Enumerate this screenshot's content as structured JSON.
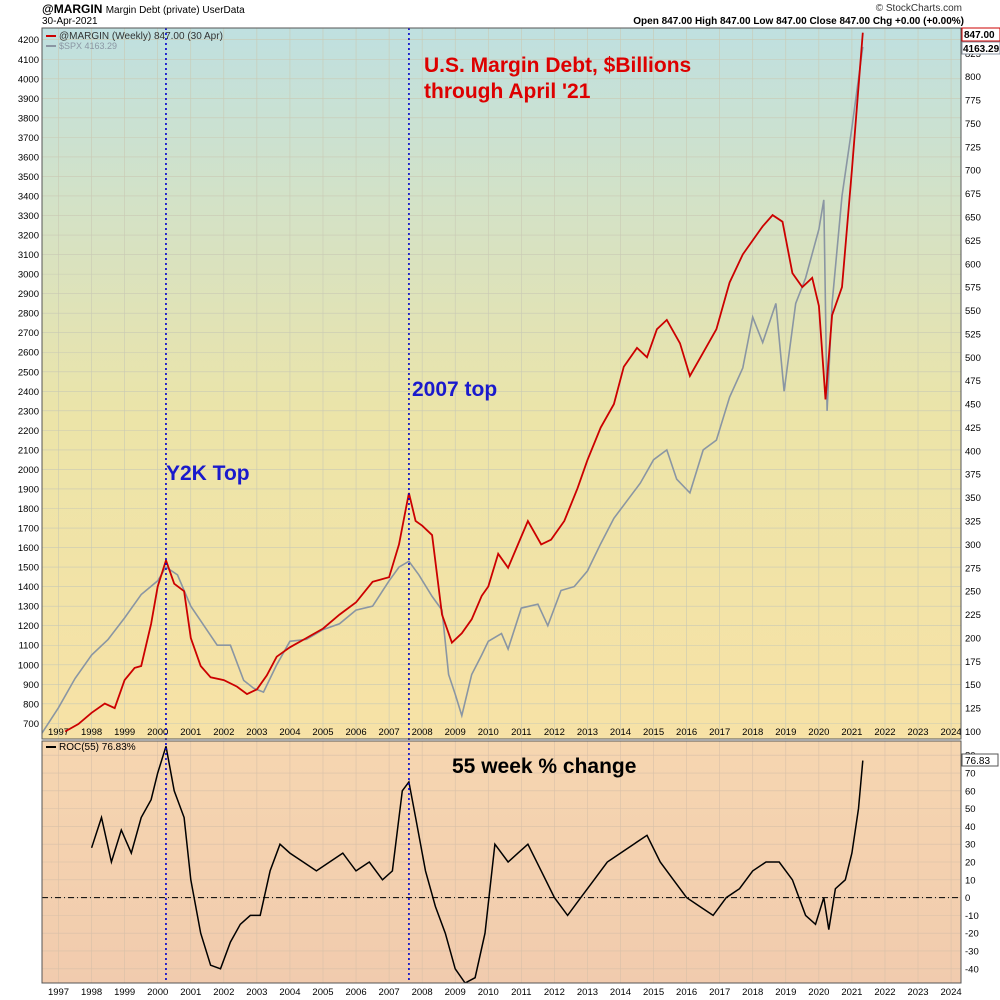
{
  "header": {
    "symbol": "@MARGIN",
    "description": "Margin Debt (private) UserData",
    "date": "30-Apr-2021",
    "watermark": "© StockCharts.com",
    "ohlc": "Open 847.00  High 847.00  Low 847.00  Close 847.00  Chg +0.00 (+0.00%)"
  },
  "legend": {
    "margin": "@MARGIN (Weekly) 847.00 (30 Apr)",
    "spx": "$SPX 4163.29",
    "roc": "ROC(55) 76.83%"
  },
  "badges": {
    "margin_last": "847.00",
    "spx_last": "4163.29",
    "roc_last": "76.83"
  },
  "annotations": {
    "title_line1": "U.S. Margin Debt, $Billions",
    "title_line2": "through April '21",
    "y2k": "Y2K Top",
    "top2007": "2007 top",
    "roc_title": "55 week % change"
  },
  "colors": {
    "margin": "#cc0000",
    "spx": "#8a96a3",
    "roc": "#000000",
    "annotation_red": "#dd0000",
    "annotation_blue": "#1a1acc",
    "marker_line": "#0000cc"
  },
  "chart_data": [
    {
      "type": "line",
      "title": "U.S. Margin Debt, $Billions through April '21",
      "x_range": [
        1996.5,
        2024.3
      ],
      "x_ticks": [
        1997,
        1998,
        1999,
        2000,
        2001,
        2002,
        2003,
        2004,
        2005,
        2006,
        2007,
        2008,
        2009,
        2010,
        2011,
        2012,
        2013,
        2014,
        2015,
        2016,
        2017,
        2018,
        2019,
        2020,
        2021,
        2022,
        2023,
        2024
      ],
      "left_axis": {
        "label": "$SPX",
        "range": [
          620,
          4260
        ],
        "ticks": [
          700,
          800,
          900,
          1000,
          1100,
          1200,
          1300,
          1400,
          1500,
          1600,
          1700,
          1800,
          1900,
          2000,
          2100,
          2200,
          2300,
          2400,
          2500,
          2600,
          2700,
          2800,
          2900,
          3000,
          3100,
          3200,
          3300,
          3400,
          3500,
          3600,
          3700,
          3800,
          3900,
          4000,
          4100,
          4200
        ]
      },
      "right_axis": {
        "label": "@MARGIN",
        "range": [
          92,
          852
        ],
        "ticks": [
          100,
          125,
          150,
          175,
          200,
          225,
          250,
          275,
          300,
          325,
          350,
          375,
          400,
          425,
          450,
          475,
          500,
          525,
          550,
          575,
          600,
          625,
          650,
          675,
          700,
          725,
          750,
          775,
          800,
          825
        ]
      },
      "markers": [
        2000.25,
        2007.6
      ],
      "series": [
        {
          "name": "@MARGIN",
          "axis": "right",
          "x": [
            1997.2,
            1997.6,
            1998.0,
            1998.4,
            1998.7,
            1999.0,
            1999.3,
            1999.5,
            1999.8,
            2000.0,
            2000.25,
            2000.5,
            2000.8,
            2001.0,
            2001.3,
            2001.6,
            2002.0,
            2002.4,
            2002.7,
            2003.0,
            2003.3,
            2003.6,
            2004.0,
            2004.5,
            2005.0,
            2005.5,
            2006.0,
            2006.5,
            2007.0,
            2007.3,
            2007.6,
            2007.8,
            2008.0,
            2008.3,
            2008.6,
            2008.9,
            2009.2,
            2009.5,
            2009.8,
            2010.0,
            2010.3,
            2010.6,
            2010.9,
            2011.2,
            2011.6,
            2011.9,
            2012.3,
            2012.7,
            2013.0,
            2013.4,
            2013.8,
            2014.1,
            2014.5,
            2014.8,
            2015.1,
            2015.4,
            2015.8,
            2016.1,
            2016.5,
            2016.9,
            2017.3,
            2017.7,
            2018.0,
            2018.3,
            2018.6,
            2018.9,
            2019.2,
            2019.5,
            2019.8,
            2020.0,
            2020.2,
            2020.4,
            2020.7,
            2021.0,
            2021.33
          ],
          "values": [
            100,
            108,
            120,
            130,
            125,
            155,
            168,
            170,
            215,
            255,
            283,
            258,
            250,
            200,
            170,
            158,
            155,
            148,
            140,
            145,
            160,
            180,
            190,
            200,
            210,
            225,
            238,
            260,
            265,
            300,
            355,
            325,
            320,
            310,
            225,
            195,
            205,
            220,
            245,
            255,
            290,
            275,
            300,
            325,
            300,
            305,
            325,
            360,
            390,
            425,
            450,
            490,
            510,
            500,
            530,
            540,
            515,
            480,
            505,
            530,
            580,
            610,
            625,
            640,
            652,
            645,
            590,
            575,
            585,
            555,
            455,
            545,
            575,
            700,
            847
          ]
        },
        {
          "name": "$SPX",
          "axis": "left",
          "x": [
            1996.5,
            1997.0,
            1997.5,
            1998.0,
            1998.5,
            1999.0,
            1999.5,
            2000.0,
            2000.25,
            2000.6,
            2001.0,
            2001.4,
            2001.8,
            2002.2,
            2002.6,
            2002.9,
            2003.2,
            2003.6,
            2004.0,
            2004.5,
            2005.0,
            2005.5,
            2006.0,
            2006.5,
            2007.0,
            2007.3,
            2007.6,
            2007.9,
            2008.3,
            2008.6,
            2008.8,
            2009.0,
            2009.2,
            2009.5,
            2009.8,
            2010.0,
            2010.4,
            2010.6,
            2011.0,
            2011.5,
            2011.8,
            2012.2,
            2012.6,
            2013.0,
            2013.4,
            2013.8,
            2014.2,
            2014.6,
            2015.0,
            2015.4,
            2015.7,
            2016.1,
            2016.5,
            2016.9,
            2017.3,
            2017.7,
            2018.0,
            2018.3,
            2018.7,
            2018.95,
            2019.3,
            2019.6,
            2020.0,
            2020.15,
            2020.25,
            2020.4,
            2020.7,
            2021.0,
            2021.33
          ],
          "values": [
            650,
            780,
            930,
            1050,
            1130,
            1240,
            1360,
            1430,
            1500,
            1460,
            1300,
            1200,
            1100,
            1100,
            920,
            880,
            860,
            1000,
            1120,
            1130,
            1180,
            1210,
            1280,
            1300,
            1430,
            1500,
            1530,
            1460,
            1350,
            1280,
            950,
            850,
            740,
            950,
            1050,
            1120,
            1160,
            1080,
            1290,
            1310,
            1200,
            1380,
            1400,
            1480,
            1620,
            1750,
            1840,
            1930,
            2050,
            2100,
            1950,
            1880,
            2100,
            2150,
            2370,
            2520,
            2780,
            2650,
            2850,
            2400,
            2850,
            2980,
            3230,
            3380,
            2300,
            2850,
            3400,
            3750,
            4163
          ]
        },
        {
          "name": "ROC(55)",
          "axis": "roc",
          "x": [
            1998.0,
            1998.3,
            1998.6,
            1998.9,
            1999.2,
            1999.5,
            1999.8,
            2000.0,
            2000.25,
            2000.5,
            2000.8,
            2001.0,
            2001.3,
            2001.6,
            2001.9,
            2002.2,
            2002.5,
            2002.8,
            2003.1,
            2003.4,
            2003.7,
            2004.0,
            2004.4,
            2004.8,
            2005.2,
            2005.6,
            2006.0,
            2006.4,
            2006.8,
            2007.1,
            2007.4,
            2007.6,
            2007.8,
            2008.1,
            2008.4,
            2008.7,
            2009.0,
            2009.3,
            2009.6,
            2009.9,
            2010.2,
            2010.6,
            2010.9,
            2011.2,
            2011.6,
            2012.0,
            2012.4,
            2012.8,
            2013.2,
            2013.6,
            2014.0,
            2014.4,
            2014.8,
            2015.2,
            2015.6,
            2016.0,
            2016.4,
            2016.8,
            2017.2,
            2017.6,
            2018.0,
            2018.4,
            2018.8,
            2019.2,
            2019.6,
            2019.9,
            2020.15,
            2020.3,
            2020.5,
            2020.8,
            2021.0,
            2021.2,
            2021.33
          ],
          "values": [
            28,
            45,
            20,
            38,
            25,
            45,
            55,
            70,
            85,
            60,
            45,
            10,
            -20,
            -38,
            -40,
            -25,
            -15,
            -10,
            -10,
            15,
            30,
            25,
            20,
            15,
            20,
            25,
            15,
            20,
            10,
            15,
            60,
            65,
            45,
            15,
            -5,
            -20,
            -40,
            -48,
            -45,
            -20,
            30,
            20,
            25,
            30,
            15,
            0,
            -10,
            0,
            10,
            20,
            25,
            30,
            35,
            20,
            10,
            0,
            -5,
            -10,
            0,
            5,
            15,
            20,
            20,
            10,
            -10,
            -15,
            0,
            -18,
            5,
            10,
            25,
            50,
            77
          ]
        }
      ]
    },
    {
      "type": "line",
      "title": "55 week % change",
      "y_range": [
        -48,
        88
      ],
      "y_ticks": [
        -40,
        -30,
        -20,
        -10,
        0,
        10,
        20,
        30,
        40,
        50,
        60,
        70,
        80
      ],
      "zero_line": true
    }
  ]
}
